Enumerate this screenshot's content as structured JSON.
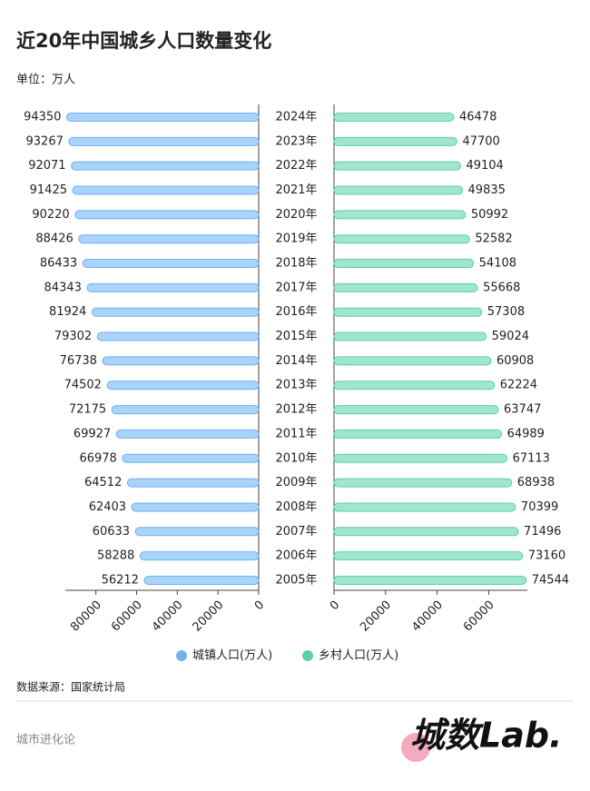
{
  "chart_data": {
    "type": "butterfly",
    "title": "近20年中国城乡人口数量变化",
    "subtitle": "单位：万人",
    "categories": [
      "2024年",
      "2023年",
      "2022年",
      "2021年",
      "2020年",
      "2019年",
      "2018年",
      "2017年",
      "2016年",
      "2015年",
      "2014年",
      "2013年",
      "2012年",
      "2011年",
      "2010年",
      "2009年",
      "2008年",
      "2007年",
      "2006年",
      "2005年"
    ],
    "series": [
      {
        "name": "城镇人口(万人)",
        "color": "#a9d3fa",
        "stroke": "#6fb2ef",
        "side": "left",
        "values": [
          94350,
          93267,
          92071,
          91425,
          90220,
          88426,
          86433,
          84343,
          81924,
          79302,
          76738,
          74502,
          72175,
          69927,
          66978,
          64512,
          62403,
          60633,
          58288,
          56212
        ],
        "xlim": [
          0,
          95000
        ],
        "xticks": [
          0,
          20000,
          40000,
          60000,
          80000
        ]
      },
      {
        "name": "乡村人口(万人)",
        "color": "#9fe6cc",
        "stroke": "#5fcfa6",
        "side": "right",
        "values": [
          46478,
          47700,
          49104,
          49835,
          50992,
          52582,
          54108,
          55668,
          57308,
          59024,
          60908,
          62224,
          63747,
          64989,
          67113,
          68938,
          70399,
          71496,
          73160,
          74544
        ],
        "xlim": [
          0,
          75000
        ],
        "xticks": [
          0,
          20000,
          40000,
          60000
        ]
      }
    ]
  },
  "footer": {
    "source": "数据来源：国家统计局",
    "brand": "城市进化论",
    "logo": "城数Lab."
  }
}
